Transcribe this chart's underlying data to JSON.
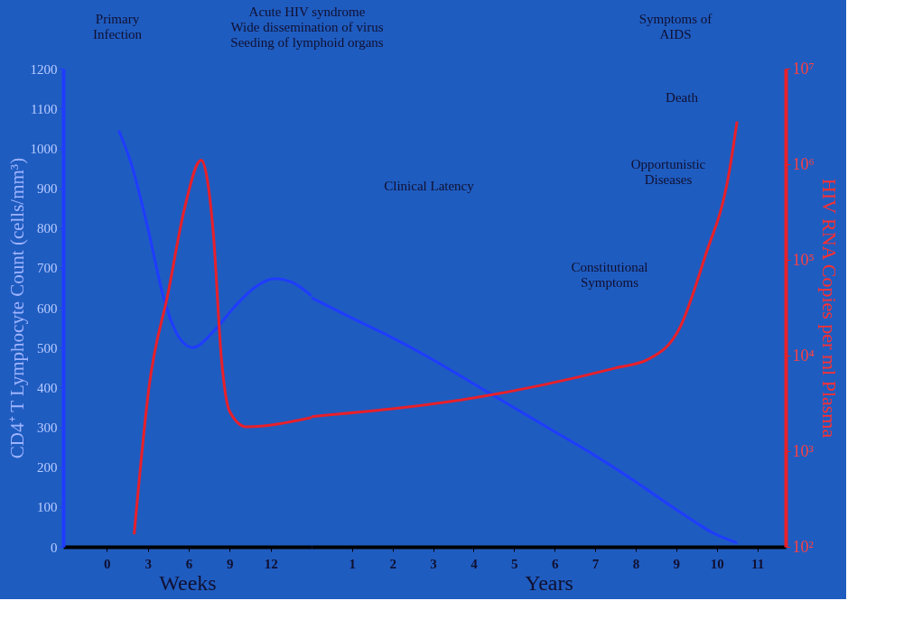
{
  "chart_data": [
    {
      "type": "line",
      "xlabel": "Weeks",
      "ylabel": "CD4⁺ T Lymphocyte Count (cells/mm³)",
      "xlim": [
        -3.2,
        15
      ],
      "xticks": [
        0,
        3,
        6,
        9,
        12
      ],
      "ylim": [
        0,
        1200
      ],
      "yticks": [
        0,
        100,
        200,
        300,
        400,
        500,
        600,
        700,
        800,
        900,
        1000,
        1100,
        1200
      ],
      "y2lim": [
        100,
        10000000
      ],
      "log": "y2",
      "grid": false,
      "legend": false,
      "marker": "none",
      "line_style": "solid",
      "series": [
        {
          "color": "#1f3cff",
          "x": [
            0.87,
            1.8,
            3,
            4.2,
            5.4,
            6.3,
            7.8,
            9.3,
            10.8,
            12.3,
            13.5,
            15
          ],
          "values": [
            1045,
            960,
            800,
            620,
            520,
            500,
            540,
            600,
            650,
            673,
            665,
            630
          ]
        },
        {
          "color": "#e8202a",
          "axis": "y2",
          "x": [
            2.0,
            3.1,
            4.5,
            5.7,
            6.9,
            7.8,
            8.4,
            9.0,
            10.2,
            15
          ],
          "values": [
            135,
            4800,
            46000,
            350000,
            1100000,
            190000,
            9100,
            2600,
            1800,
            2250
          ]
        }
      ],
      "annotations": [
        "Primary\nInfection",
        "Acute HIV syndrome\nWide dissemination of virus\nSeeding of lymphoid organs"
      ]
    },
    {
      "type": "line",
      "xlabel": "Years",
      "y2label": "HIV RNA Copies per ml Plasma",
      "xlim": [
        0,
        11.7
      ],
      "xticks": [
        1,
        2,
        3,
        4,
        5,
        6,
        7,
        8,
        9,
        10,
        11
      ],
      "ylim": [
        0,
        1200
      ],
      "y2lim": [
        100,
        10000000
      ],
      "y2ticks": [
        {
          "value": 100,
          "label": "10²"
        },
        {
          "value": 1000,
          "label": "10³"
        },
        {
          "value": 10000,
          "label": "10⁴"
        },
        {
          "value": 100000,
          "label": "10⁵"
        },
        {
          "value": 1000000,
          "label": "10⁶"
        },
        {
          "value": 10000000,
          "label": "10⁷"
        }
      ],
      "log": "y2",
      "grid": false,
      "legend": false,
      "marker": "none",
      "line_style": "solid",
      "series": [
        {
          "color": "#1f3cff",
          "x": [
            0,
            0.88,
            1.89,
            2.9,
            3.9,
            4.9,
            5.9,
            6.9,
            7.9,
            8.9,
            9.5,
            9.9,
            10.5
          ],
          "values": [
            625,
            580,
            530,
            475,
            415,
            355,
            295,
            235,
            170,
            100,
            60,
            35,
            10
          ]
        },
        {
          "color": "#e8202a",
          "axis": "y2",
          "x": [
            0,
            4.0,
            7.5,
            8.3,
            9.1,
            9.7,
            10.3,
            10.5
          ],
          "values": [
            2300,
            3600,
            7400,
            9100,
            20000,
            105000,
            800000,
            2800000
          ]
        }
      ],
      "annotations": [
        "Symptoms of\nAIDS",
        "Clinical Latency",
        "Death",
        "Opportunistic\nDiseases",
        "Constitutional\nSymptoms"
      ]
    }
  ]
}
